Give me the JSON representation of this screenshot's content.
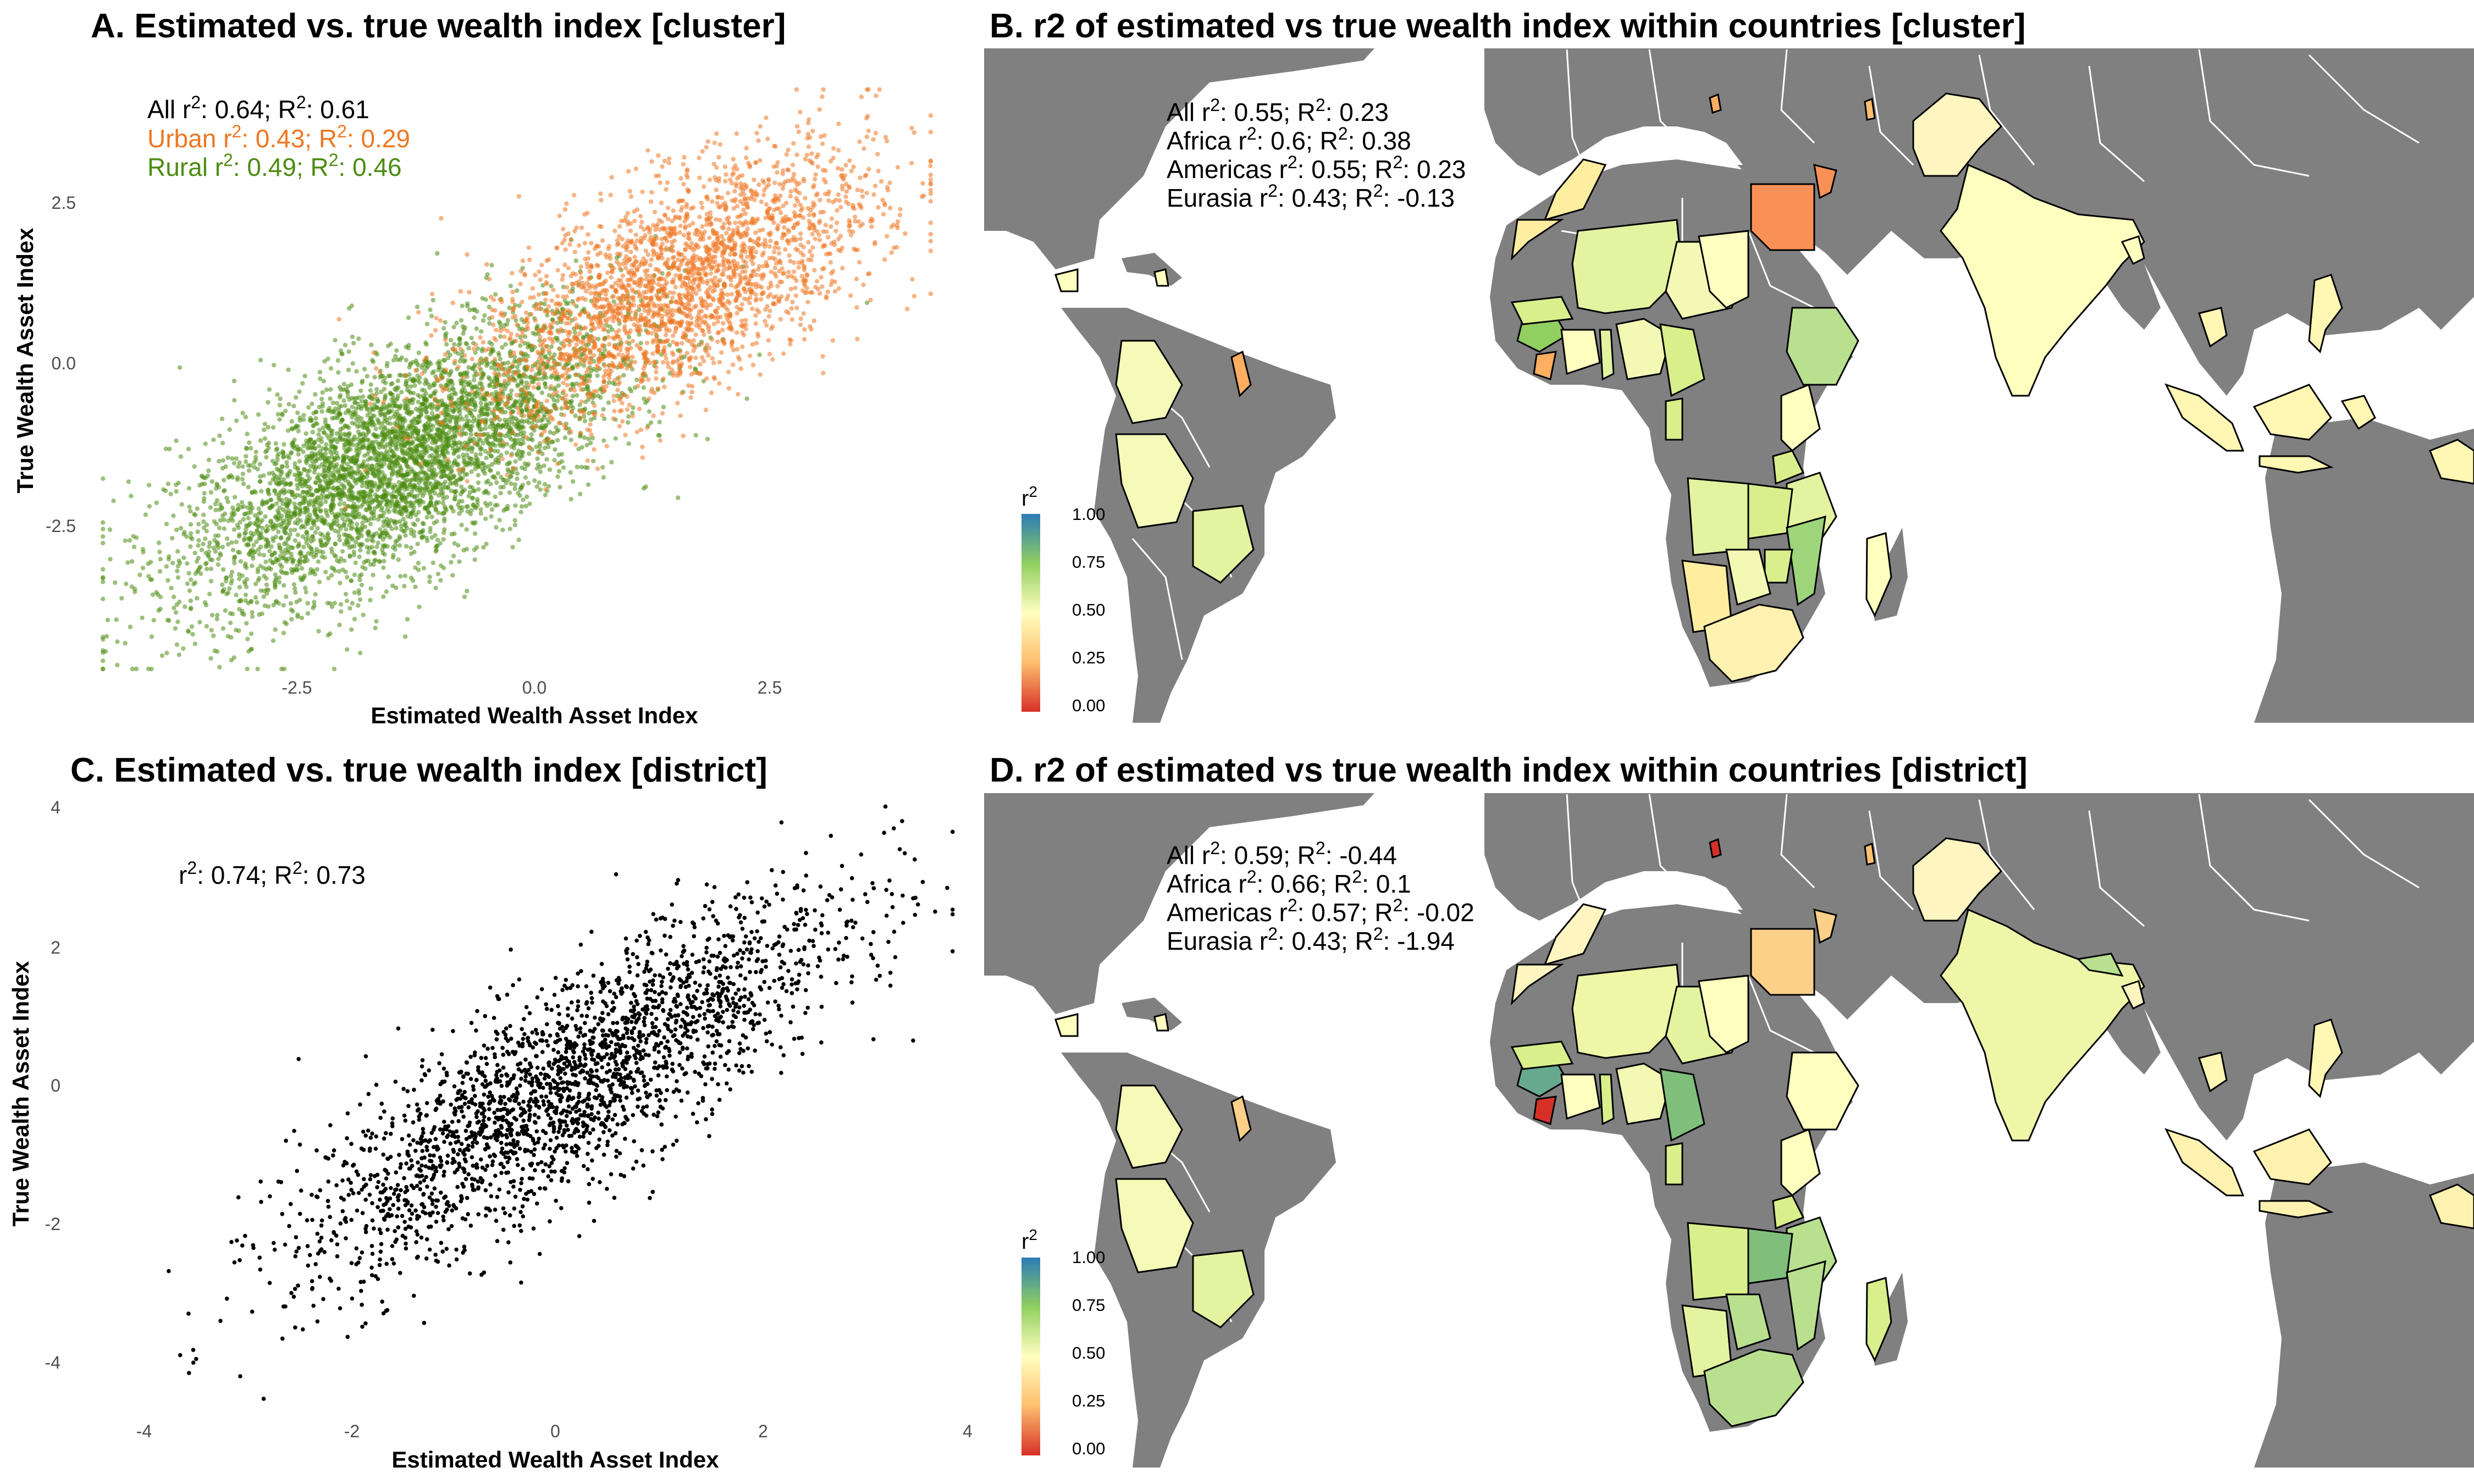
{
  "colors": {
    "urban": "#ee7722",
    "rural": "#4c8c12",
    "point": "#000000",
    "land": "#808080",
    "border": "#ffffff",
    "ocean": "#ffffff"
  },
  "chart_data": [
    {
      "panel": "A",
      "type": "scatter",
      "title": "A. Estimated vs. true wealth index [cluster]",
      "xlabel": "Estimated Wealth Asset Index",
      "ylabel": "True Wealth Asset Index",
      "xlim": [
        -4.4,
        4.2
      ],
      "ylim": [
        -4.2,
        4.2
      ],
      "xticks": [
        "-2.5",
        "0.0",
        "2.5"
      ],
      "yticks": [
        "-2.5",
        "0.0",
        "2.5"
      ],
      "series": [
        {
          "name": "Rural",
          "color": "#4c8c12",
          "n_points": 4500,
          "slope": 0.62,
          "intercept": -0.35,
          "x_mean": -1.3,
          "x_sd": 1.1
        },
        {
          "name": "Urban",
          "color": "#ee7722",
          "n_points": 2600,
          "slope": 0.6,
          "intercept": 0.4,
          "x_mean": 1.5,
          "x_sd": 1.0
        }
      ],
      "annotations": [
        {
          "label": "All",
          "r2": "0.64",
          "R2": "0.61",
          "color": "#000000"
        },
        {
          "label": "Urban",
          "r2": "0.43",
          "R2": "0.29",
          "color": "#ee7722"
        },
        {
          "label": "Rural",
          "r2": "0.49",
          "R2": "0.46",
          "color": "#4c8c12"
        }
      ]
    },
    {
      "panel": "B",
      "type": "map",
      "title": "B. r2 of estimated vs true wealth index within countries [cluster]",
      "legend_title": "r",
      "legend_ticks": [
        "1.00",
        "0.75",
        "0.50",
        "0.25",
        "0.00"
      ],
      "annotations": [
        {
          "label": "All",
          "r2": "0.55",
          "R2": "0.23"
        },
        {
          "label": "Africa",
          "r2": "0.6",
          "R2": "0.38"
        },
        {
          "label": "Americas",
          "r2": "0.55",
          "R2": "0.23"
        },
        {
          "label": "Eurasia",
          "r2": "0.43",
          "R2": "-0.13"
        }
      ]
    },
    {
      "panel": "C",
      "type": "scatter",
      "title": "C. Estimated vs. true wealth index [district]",
      "xlabel": "Estimated Wealth Asset Index",
      "ylabel": "True Wealth Asset Index",
      "xlim": [
        -4.2,
        4
      ],
      "ylim": [
        -4.6,
        4.3
      ],
      "xticks": [
        "-4",
        "-2",
        "0",
        "2",
        "4"
      ],
      "yticks": [
        "4",
        "2",
        "0",
        "-2",
        "-4"
      ],
      "series": [
        {
          "name": "District",
          "color": "#000000",
          "n_points": 2400,
          "slope": 0.85,
          "intercept": 0.1,
          "x_mean": 0,
          "x_sd": 1.35
        }
      ],
      "annotations": [
        {
          "label": "",
          "r2": "0.74",
          "R2": "0.73",
          "color": "#000000"
        }
      ]
    },
    {
      "panel": "D",
      "type": "map",
      "title": "D. r2 of estimated vs true wealth index within countries [district]",
      "legend_title": "r",
      "legend_ticks": [
        "1.00",
        "0.75",
        "0.50",
        "0.25",
        "0.00"
      ],
      "annotations": [
        {
          "label": "All",
          "r2": "0.59",
          "R2": "-0.44"
        },
        {
          "label": "Africa",
          "r2": "0.66",
          "R2": "0.1"
        },
        {
          "label": "Americas",
          "r2": "0.57",
          "R2": "-0.02"
        },
        {
          "label": "Eurasia",
          "r2": "0.43",
          "R2": "-1.94"
        }
      ]
    }
  ]
}
